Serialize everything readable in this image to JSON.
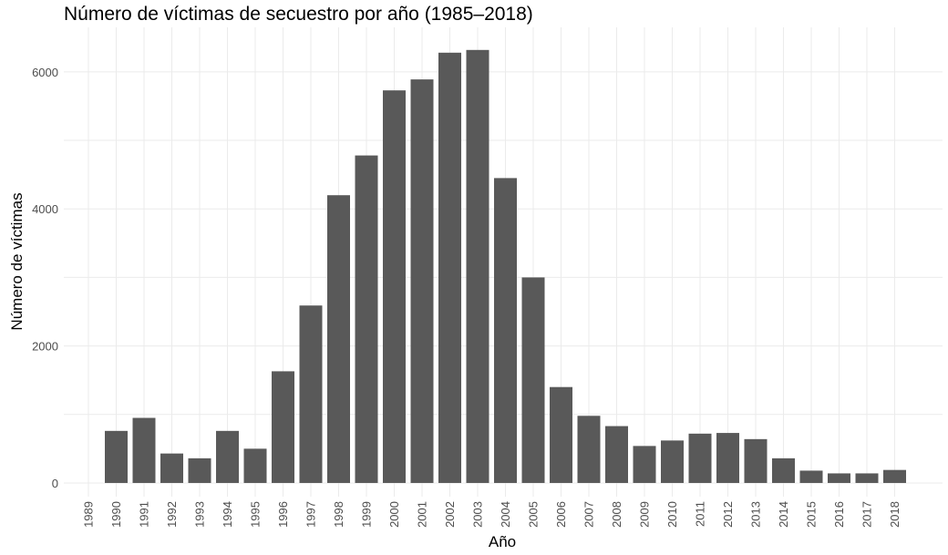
{
  "chart_data": {
    "type": "bar",
    "title": "Número de víctimas de secuestro por año (1985–2018)",
    "xlabel": "Año",
    "ylabel": "Número de víctimas",
    "categories": [
      "1989",
      "1990",
      "1991",
      "1992",
      "1993",
      "1994",
      "1995",
      "1996",
      "1997",
      "1998",
      "1999",
      "2000",
      "2001",
      "2002",
      "2003",
      "2004",
      "2005",
      "2006",
      "2007",
      "2008",
      "2009",
      "2010",
      "2011",
      "2012",
      "2013",
      "2014",
      "2015",
      "2016",
      "2017",
      "2018"
    ],
    "values": [
      0,
      760,
      950,
      430,
      360,
      760,
      500,
      1630,
      2590,
      4200,
      4780,
      5730,
      5890,
      6280,
      6320,
      4450,
      3000,
      1400,
      980,
      830,
      540,
      620,
      720,
      730,
      640,
      360,
      180,
      140,
      140,
      190
    ],
    "yticks": [
      0,
      2000,
      4000,
      6000
    ],
    "ytick_labels": [
      "0",
      "2000",
      "4000",
      "6000"
    ],
    "ylim": [
      -200,
      6650
    ],
    "grid": true,
    "bar_color": "#595959",
    "grid_color": "#ebebeb"
  }
}
